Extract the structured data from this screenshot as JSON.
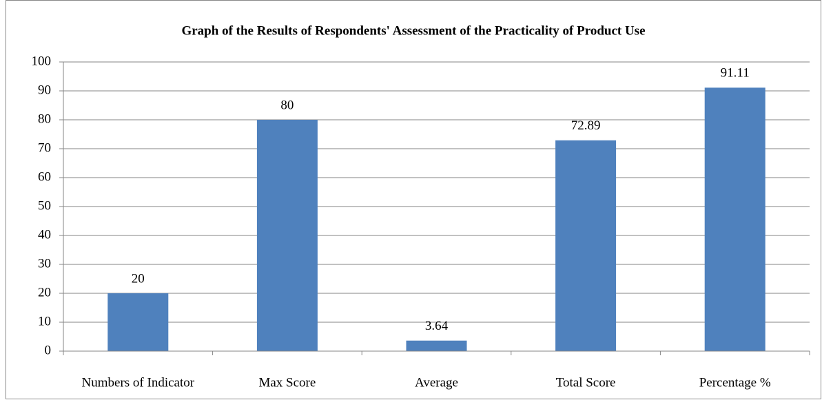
{
  "chart_data": {
    "type": "bar",
    "title": "Graph of the Results of Respondents' Assessment of the Practicality of Product Use",
    "categories": [
      "Numbers of Indicator",
      "Max Score",
      "Average",
      "Total Score",
      "Percentage %"
    ],
    "values": [
      20,
      80,
      3.64,
      72.89,
      91.11
    ],
    "color": "#4f81bd",
    "ylim": [
      0,
      100
    ],
    "yticks": [
      0,
      10,
      20,
      30,
      40,
      50,
      60,
      70,
      80,
      90,
      100
    ],
    "grid": true
  }
}
